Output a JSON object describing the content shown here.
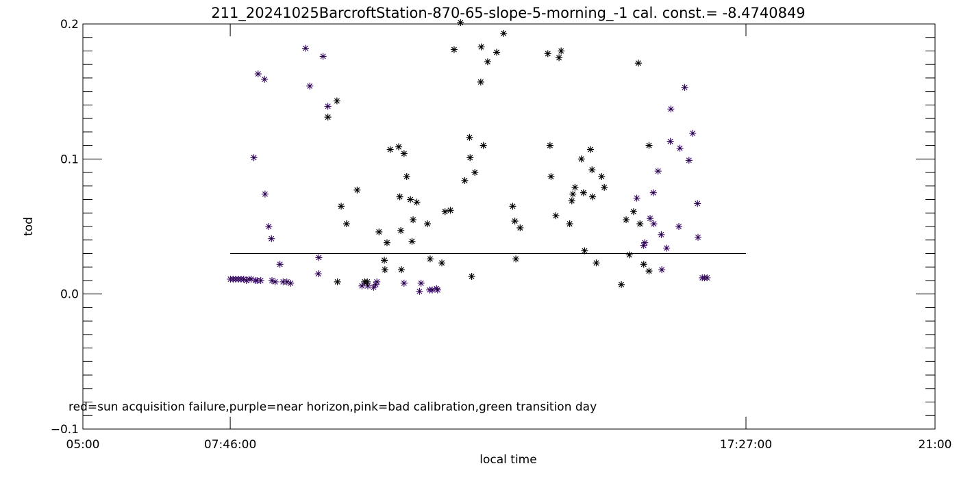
{
  "chart_data": {
    "type": "scatter",
    "title": "211_20241025BarcroftStation-870-65-slope-5-morning_-1 cal. const.= -8.4740849",
    "xlabel": "local time",
    "ylabel": "tod",
    "xlim_hours": [
      5.0,
      21.0
    ],
    "ylim": [
      -0.1,
      0.2
    ],
    "x_ticks": [
      {
        "hour": 5.0,
        "label": "05:00"
      },
      {
        "hour": 7.7667,
        "label": "07:46:00"
      },
      {
        "hour": 17.45,
        "label": "17:27:00"
      },
      {
        "hour": 21.0,
        "label": "21:00"
      }
    ],
    "y_ticks": [
      {
        "value": -0.1,
        "label": "−0.1"
      },
      {
        "value": 0.0,
        "label": "0.0"
      },
      {
        "value": 0.1,
        "label": "0.1"
      },
      {
        "value": 0.2,
        "label": "0.2"
      }
    ],
    "note": "red=sun acquisition failure,purple=near horizon,pink=bad calibration,green transition day",
    "reference_line": {
      "y": 0.03,
      "x_start": 7.7667,
      "x_end": 17.45
    },
    "colors": {
      "black": "#000000",
      "purple": "#8a2be2"
    },
    "series": [
      {
        "color_key": "purple",
        "points": [
          [
            7.77,
            0.011
          ],
          [
            7.82,
            0.011
          ],
          [
            7.87,
            0.011
          ],
          [
            7.92,
            0.011
          ],
          [
            7.97,
            0.011
          ],
          [
            8.02,
            0.011
          ],
          [
            8.07,
            0.01
          ],
          [
            8.12,
            0.011
          ],
          [
            8.16,
            0.011
          ],
          [
            8.21,
            0.101
          ],
          [
            8.24,
            0.01
          ],
          [
            8.27,
            0.01
          ],
          [
            8.29,
            0.163
          ],
          [
            8.34,
            0.01
          ],
          [
            8.41,
            0.159
          ],
          [
            8.42,
            0.074
          ],
          [
            8.49,
            0.05
          ],
          [
            8.54,
            0.041
          ],
          [
            8.55,
            0.01
          ],
          [
            8.61,
            0.009
          ],
          [
            8.7,
            0.022
          ],
          [
            8.76,
            0.009
          ],
          [
            8.83,
            0.009
          ],
          [
            8.9,
            0.008
          ],
          [
            9.18,
            0.182
          ],
          [
            9.26,
            0.154
          ],
          [
            9.42,
            0.015
          ],
          [
            9.43,
            0.027
          ],
          [
            9.51,
            0.176
          ],
          [
            9.6,
            0.139
          ],
          [
            10.24,
            0.006
          ],
          [
            10.35,
            0.006
          ],
          [
            10.46,
            0.005
          ],
          [
            10.5,
            0.007
          ],
          [
            10.52,
            0.009
          ],
          [
            11.03,
            0.008
          ],
          [
            11.32,
            0.002
          ],
          [
            11.35,
            0.008
          ],
          [
            11.51,
            0.003
          ],
          [
            11.56,
            0.003
          ],
          [
            11.64,
            0.004
          ],
          [
            11.66,
            0.003
          ],
          [
            15.4,
            0.071
          ],
          [
            15.53,
            0.036
          ],
          [
            15.55,
            0.038
          ],
          [
            15.65,
            0.056
          ],
          [
            15.72,
            0.052
          ],
          [
            15.71,
            0.075
          ],
          [
            15.8,
            0.091
          ],
          [
            15.86,
            0.044
          ],
          [
            15.87,
            0.018
          ],
          [
            15.96,
            0.034
          ],
          [
            16.03,
            0.113
          ],
          [
            16.04,
            0.137
          ],
          [
            16.21,
            0.108
          ],
          [
            16.19,
            0.05
          ],
          [
            16.3,
            0.153
          ],
          [
            16.38,
            0.099
          ],
          [
            16.45,
            0.119
          ],
          [
            16.54,
            0.067
          ],
          [
            16.55,
            0.042
          ],
          [
            16.63,
            0.012
          ],
          [
            16.67,
            0.012
          ],
          [
            16.72,
            0.012
          ]
        ]
      },
      {
        "color_key": "black",
        "points": [
          [
            9.6,
            0.131
          ],
          [
            9.77,
            0.143
          ],
          [
            9.78,
            0.009
          ],
          [
            9.85,
            0.065
          ],
          [
            9.95,
            0.052
          ],
          [
            10.15,
            0.077
          ],
          [
            10.29,
            0.009
          ],
          [
            10.34,
            0.009
          ],
          [
            10.56,
            0.046
          ],
          [
            10.67,
            0.018
          ],
          [
            10.66,
            0.025
          ],
          [
            10.71,
            0.038
          ],
          [
            10.77,
            0.107
          ],
          [
            10.93,
            0.109
          ],
          [
            10.95,
            0.072
          ],
          [
            10.97,
            0.047
          ],
          [
            10.98,
            0.018
          ],
          [
            11.03,
            0.104
          ],
          [
            11.08,
            0.087
          ],
          [
            11.15,
            0.07
          ],
          [
            11.18,
            0.039
          ],
          [
            11.2,
            0.055
          ],
          [
            11.27,
            0.068
          ],
          [
            11.47,
            0.052
          ],
          [
            11.52,
            0.026
          ],
          [
            11.74,
            0.023
          ],
          [
            11.8,
            0.061
          ],
          [
            11.9,
            0.062
          ],
          [
            11.97,
            0.181
          ],
          [
            12.09,
            0.201
          ],
          [
            12.17,
            0.084
          ],
          [
            12.26,
            0.116
          ],
          [
            12.27,
            0.101
          ],
          [
            12.3,
            0.013
          ],
          [
            12.36,
            0.09
          ],
          [
            12.47,
            0.157
          ],
          [
            12.48,
            0.183
          ],
          [
            12.52,
            0.11
          ],
          [
            12.6,
            0.172
          ],
          [
            12.77,
            0.179
          ],
          [
            12.9,
            0.193
          ],
          [
            13.07,
            0.065
          ],
          [
            13.11,
            0.054
          ],
          [
            13.13,
            0.026
          ],
          [
            13.21,
            0.049
          ],
          [
            13.73,
            0.178
          ],
          [
            13.77,
            0.11
          ],
          [
            13.79,
            0.087
          ],
          [
            13.88,
            0.058
          ],
          [
            13.94,
            0.175
          ],
          [
            13.98,
            0.18
          ],
          [
            14.14,
            0.052
          ],
          [
            14.18,
            0.069
          ],
          [
            14.2,
            0.074
          ],
          [
            14.24,
            0.079
          ],
          [
            14.36,
            0.1
          ],
          [
            14.4,
            0.075
          ],
          [
            14.42,
            0.032
          ],
          [
            14.53,
            0.107
          ],
          [
            14.56,
            0.092
          ],
          [
            14.57,
            0.072
          ],
          [
            14.64,
            0.023
          ],
          [
            14.74,
            0.087
          ],
          [
            14.79,
            0.079
          ],
          [
            15.11,
            0.007
          ],
          [
            15.2,
            0.055
          ],
          [
            15.26,
            0.029
          ],
          [
            15.34,
            0.061
          ],
          [
            15.43,
            0.171
          ],
          [
            15.46,
            0.052
          ],
          [
            15.53,
            0.022
          ],
          [
            15.63,
            0.11
          ],
          [
            15.63,
            0.017
          ]
        ]
      }
    ]
  }
}
